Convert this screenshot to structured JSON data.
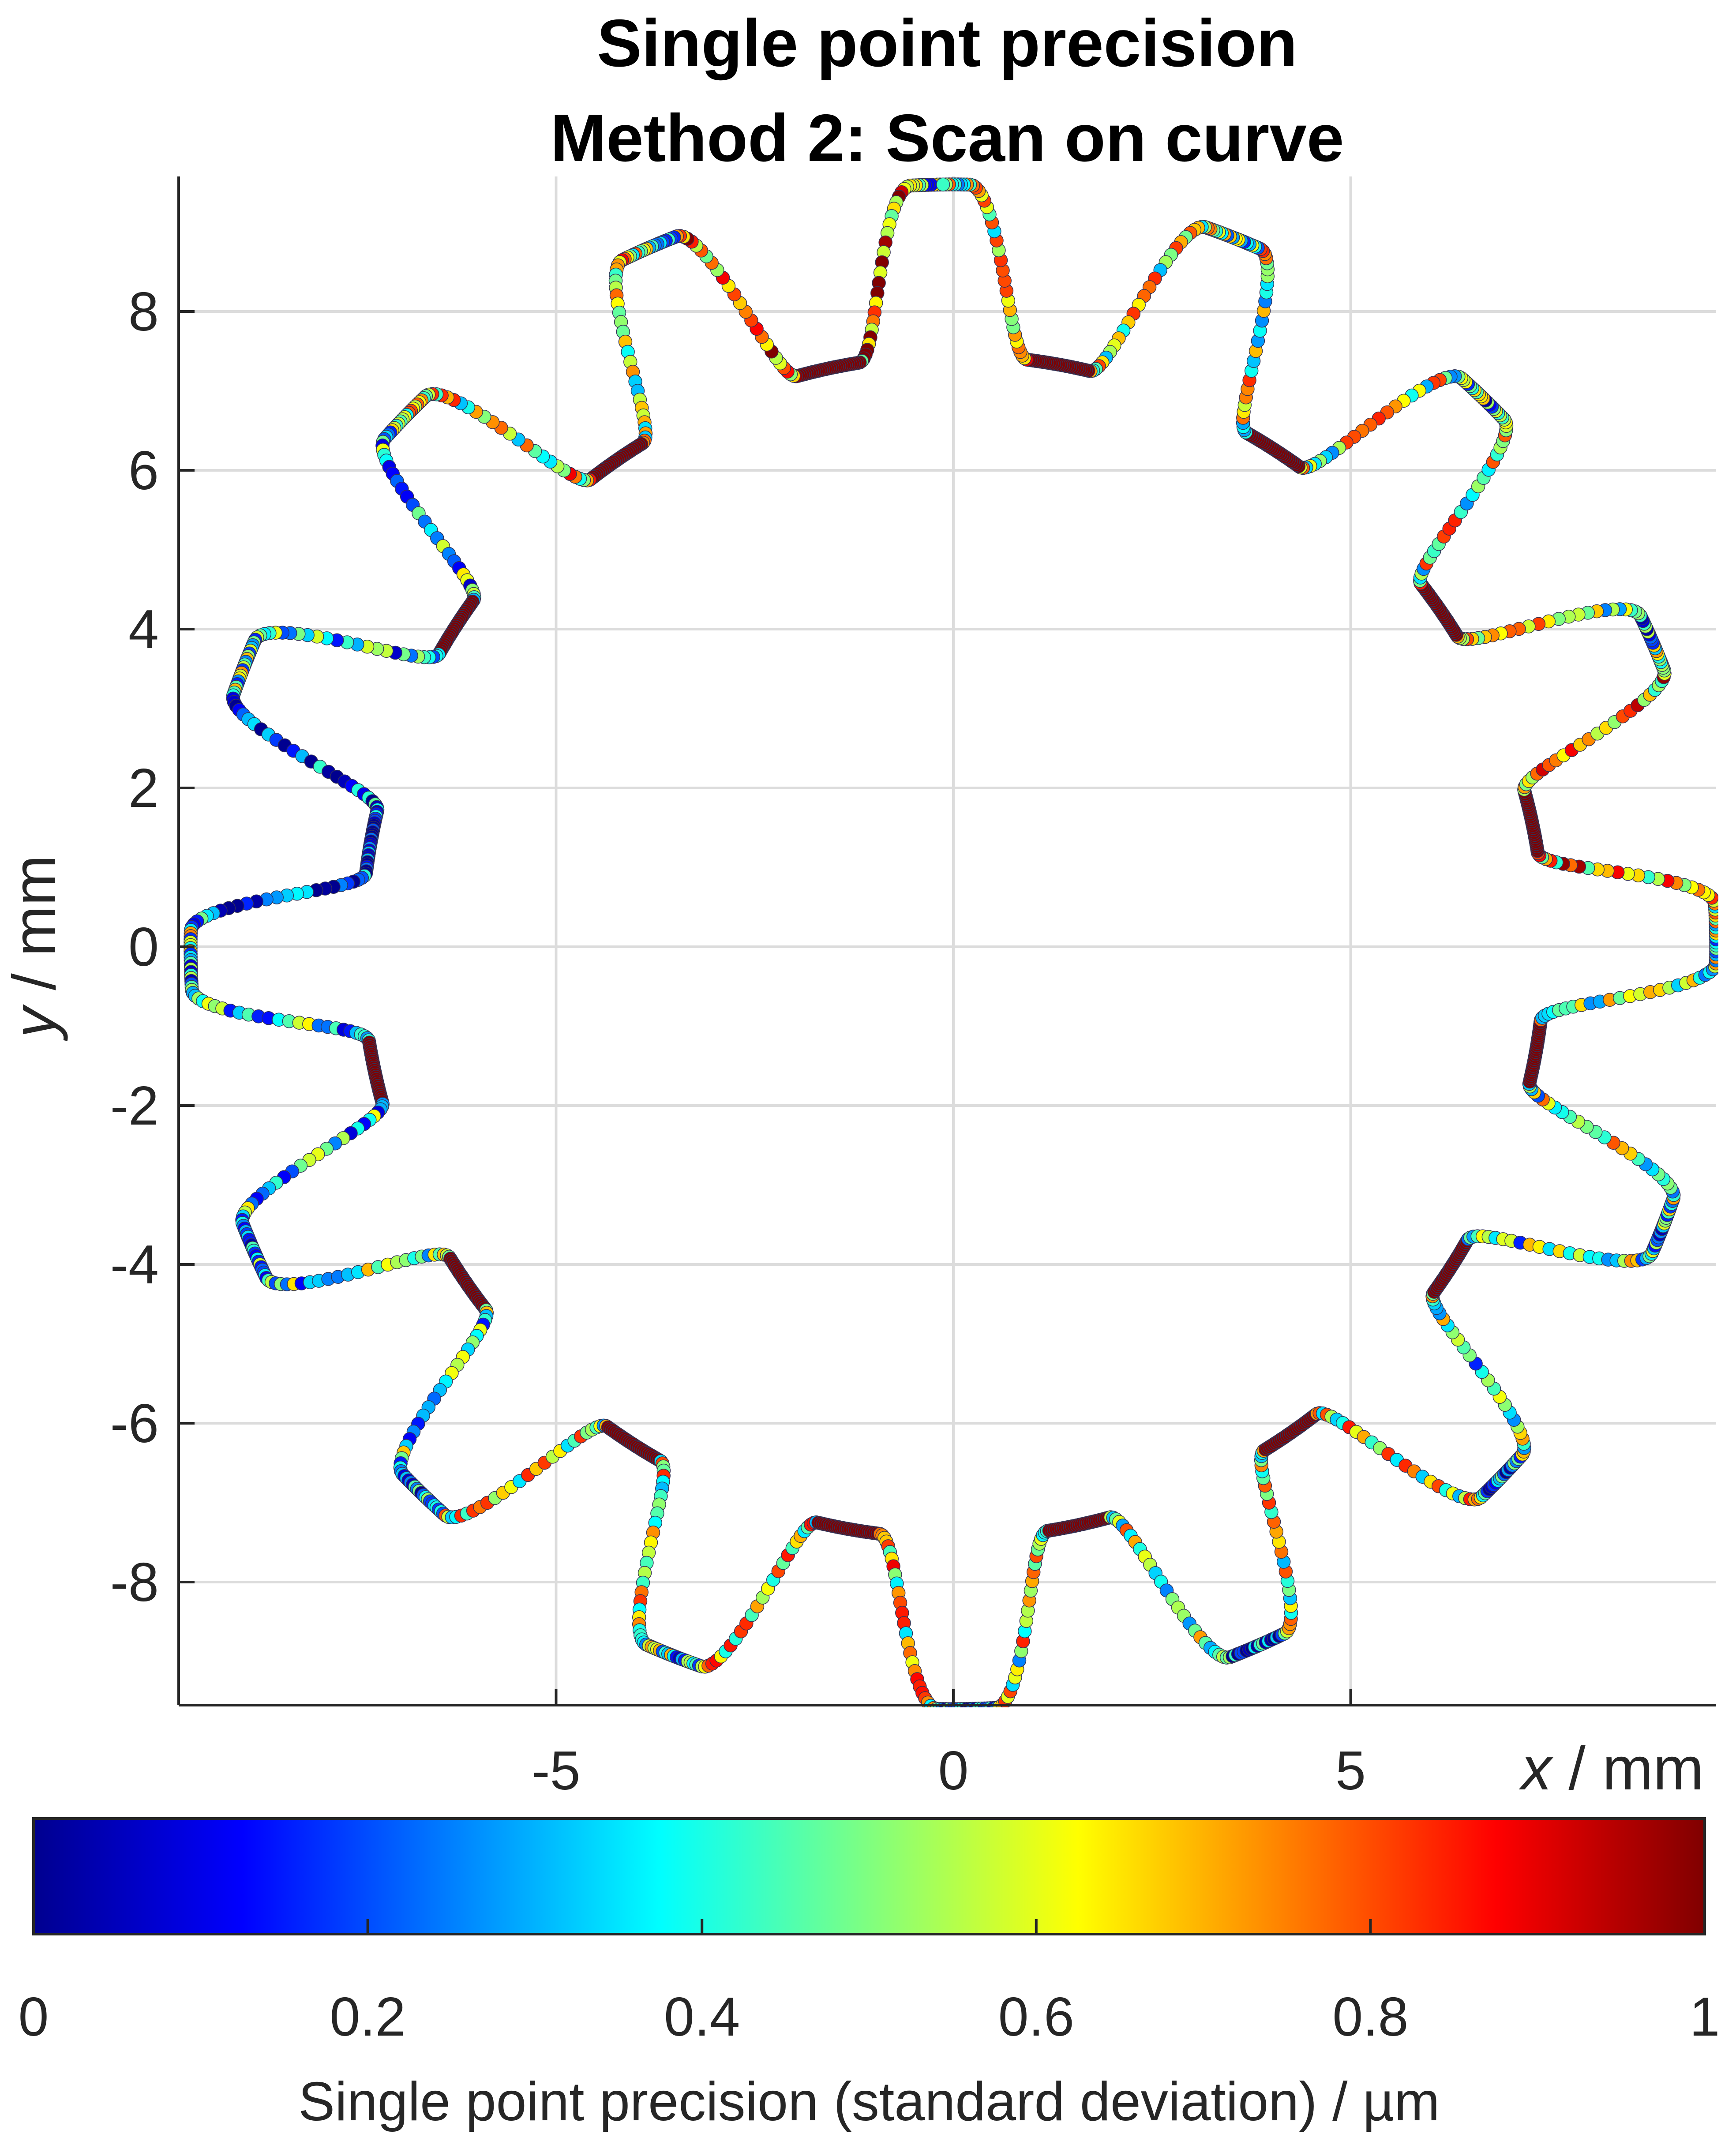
{
  "chart_data": {
    "type": "scatter",
    "title": [
      "Single point precision",
      "Method 2: Scan on curve"
    ],
    "xlabel_var": "x",
    "xlabel_unit": " / mm",
    "ylabel_var": "y",
    "ylabel_unit": " / mm",
    "xlim": [
      -9.75,
      9.6
    ],
    "ylim": [
      -9.55,
      9.7
    ],
    "xticks": [
      -5,
      0,
      5
    ],
    "xtick_labels": [
      "-5",
      "0",
      "5"
    ],
    "yticks": [
      -8,
      -6,
      -4,
      -2,
      0,
      2,
      4,
      6,
      8
    ],
    "ytick_labels": [
      "-8",
      "-6",
      "-4",
      "-2",
      "0",
      "2",
      "4",
      "6",
      "8"
    ],
    "grid": true,
    "colorbar": {
      "label": "Single point precision (standard deviation) / µm",
      "range": [
        0,
        1
      ],
      "ticks": [
        0,
        0.2,
        0.4,
        0.6,
        0.8,
        1
      ],
      "tick_labels": [
        "0",
        "0.2",
        "0.4",
        "0.6",
        "0.8",
        "1"
      ],
      "colormap": "jet",
      "colormap_stops": [
        "#00008f",
        "#0000ff",
        "#00ffff",
        "#ffff00",
        "#ff0000",
        "#800000"
      ]
    },
    "profile": {
      "description": "gear profile, 16 teeth",
      "teeth": 16,
      "tip_radius_mm": 9.6,
      "root_radius_mm": 7.45,
      "first_tip_angle_deg": 91,
      "tip_half_width_deg": 2.2,
      "flank_width_deg": 6.0
    },
    "precision_by_tooth_um": [
      {
        "tooth": 1,
        "tip_angle_deg": 91,
        "tip": 0.4,
        "flank_ccw": 0.75,
        "root_ccw": 1.0
      },
      {
        "tooth": 2,
        "tip_angle_deg": 113.5,
        "tip": 0.55,
        "flank_ccw": 0.6,
        "root_ccw": 1.0
      },
      {
        "tooth": 3,
        "tip_angle_deg": 136,
        "tip": 0.45,
        "flank_ccw": 0.35,
        "root_ccw": 1.0
      },
      {
        "tooth": 4,
        "tip_angle_deg": 158.5,
        "tip": 0.45,
        "flank_ccw": 0.2,
        "root_ccw": 0.12
      },
      {
        "tooth": 5,
        "tip_angle_deg": 181,
        "tip": 0.3,
        "flank_ccw": 0.35,
        "root_ccw": 1.0
      },
      {
        "tooth": 6,
        "tip_angle_deg": 203.5,
        "tip": 0.3,
        "flank_ccw": 0.4,
        "root_ccw": 1.0
      },
      {
        "tooth": 7,
        "tip_angle_deg": 226,
        "tip": 0.45,
        "flank_ccw": 0.55,
        "root_ccw": 1.0
      },
      {
        "tooth": 8,
        "tip_angle_deg": 248.5,
        "tip": 0.3,
        "flank_ccw": 0.6,
        "root_ccw": 1.0
      },
      {
        "tooth": 9,
        "tip_angle_deg": 271,
        "tip": 0.15,
        "flank_ccw": 0.55,
        "root_ccw": 1.0
      },
      {
        "tooth": 10,
        "tip_angle_deg": 293.5,
        "tip": 0.2,
        "flank_ccw": 0.6,
        "root_ccw": 1.0
      },
      {
        "tooth": 11,
        "tip_angle_deg": 316,
        "tip": 0.3,
        "flank_ccw": 0.45,
        "root_ccw": 1.0
      },
      {
        "tooth": 12,
        "tip_angle_deg": 338.5,
        "tip": 0.45,
        "flank_ccw": 0.5,
        "root_ccw": 1.0
      },
      {
        "tooth": 13,
        "tip_angle_deg": 1,
        "tip": 0.5,
        "flank_ccw": 0.7,
        "root_ccw": 1.0
      },
      {
        "tooth": 14,
        "tip_angle_deg": 23.5,
        "tip": 0.3,
        "flank_ccw": 0.55,
        "root_ccw": 1.0
      },
      {
        "tooth": 15,
        "tip_angle_deg": 46,
        "tip": 0.4,
        "flank_ccw": 0.55,
        "root_ccw": 1.0
      },
      {
        "tooth": 16,
        "tip_angle_deg": 68.5,
        "tip": 0.5,
        "flank_ccw": 0.6,
        "root_ccw": 1.0
      }
    ]
  }
}
